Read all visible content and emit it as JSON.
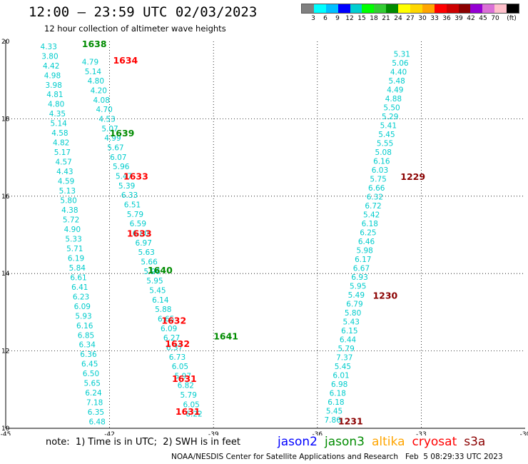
{
  "header": {
    "title": "12:00 — 23:59 UTC 02/03/2023",
    "subtitle": "12 hour collection of altimeter wave heights"
  },
  "colorbar": {
    "colors": [
      "#808080",
      "#00ffff",
      "#00bfff",
      "#0000ff",
      "#00ced1",
      "#00ff00",
      "#32cd32",
      "#008b00",
      "#ffff00",
      "#ffd700",
      "#ffa500",
      "#ff0000",
      "#cd0000",
      "#8b0000",
      "#9400d3",
      "#da70d6",
      "#ffc0cb",
      "#000000"
    ],
    "labels": [
      "3",
      "6",
      "9",
      "12",
      "15",
      "18",
      "21",
      "24",
      "27",
      "30",
      "33",
      "36",
      "39",
      "42",
      "45",
      "70",
      "(ft)"
    ]
  },
  "map": {
    "lon_range": [
      -45,
      -30
    ],
    "lat_range": [
      10,
      20
    ],
    "x_ticks": [
      "-45",
      "-42",
      "-39",
      "-36",
      "-33",
      "-30"
    ],
    "y_ticks": [
      "10",
      "12",
      "14",
      "16",
      "18",
      "20"
    ],
    "grid": true,
    "value_color": "#00cccc",
    "passes": [
      {
        "id": "west_a",
        "values": [
          "4.33",
          "3.80",
          "4.42",
          "4.98",
          "3.98",
          "4.81",
          "4.80",
          "4.35",
          "5.14",
          "4.58",
          "4.82",
          "5.17",
          "4.57",
          "4.43",
          "4.59",
          "5.13",
          "5.80",
          "4.38",
          "5.72",
          "4.90",
          "5.33",
          "5.71",
          "6.19",
          "5.84",
          "6.61",
          "6.41",
          "6.23",
          "6.09",
          "5.93",
          "6.16",
          "6.85",
          "6.34",
          "6.36",
          "6.45",
          "6.50",
          "5.65",
          "6.24",
          "7.18",
          "6.35",
          "6.48"
        ]
      },
      {
        "id": "west_b",
        "values": [
          "4.79",
          "5.14",
          "4.80",
          "4.20",
          "4.08",
          "4.70",
          "4.53",
          "5.07",
          "4.99",
          "5.67",
          "6.07",
          "5.96",
          "5.47",
          "5.39",
          "6.33",
          "6.51",
          "5.79",
          "6.59",
          "6.80",
          "6.97",
          "5.63",
          "5.66",
          "5.96",
          "5.95",
          "5.45",
          "6.14",
          "5.88",
          "6.65",
          "6.09",
          "6.27",
          "6.37",
          "6.73",
          "6.05",
          "5.97",
          "6.82",
          "5.79",
          "6.05",
          "6.22"
        ]
      },
      {
        "id": "east",
        "values": [
          "5.31",
          "5.06",
          "4.40",
          "5.48",
          "4.49",
          "4.88",
          "5.50",
          "5.29",
          "5.41",
          "5.45",
          "5.55",
          "5.08",
          "6.16",
          "6.03",
          "5.75",
          "6.66",
          "6.32",
          "6.72",
          "5.42",
          "6.18",
          "6.25",
          "6.46",
          "5.98",
          "6.17",
          "6.67",
          "6.93",
          "5.95",
          "5.49",
          "6.79",
          "5.80",
          "5.43",
          "6.15",
          "6.44",
          "5.79",
          "7.37",
          "5.45",
          "6.01",
          "6.98",
          "6.18",
          "6.18",
          "5.45",
          "7.86"
        ]
      }
    ],
    "time_labels": [
      {
        "text": "1638",
        "lon": -42.8,
        "lat": 19.85,
        "satellite": "jason3"
      },
      {
        "text": "1634",
        "lon": -41.9,
        "lat": 19.43,
        "satellite": "cryosat"
      },
      {
        "text": "1639",
        "lon": -42.0,
        "lat": 17.55,
        "satellite": "jason3"
      },
      {
        "text": "1633",
        "lon": -41.6,
        "lat": 16.43,
        "satellite": "cryosat"
      },
      {
        "text": "1633",
        "lon": -41.5,
        "lat": 14.95,
        "satellite": "cryosat"
      },
      {
        "text": "1640",
        "lon": -40.9,
        "lat": 14.0,
        "satellite": "jason3"
      },
      {
        "text": "1632",
        "lon": -40.5,
        "lat": 12.7,
        "satellite": "cryosat"
      },
      {
        "text": "1632",
        "lon": -40.4,
        "lat": 12.1,
        "satellite": "cryosat"
      },
      {
        "text": "1641",
        "lon": -39.0,
        "lat": 12.3,
        "satellite": "jason3"
      },
      {
        "text": "1631",
        "lon": -40.2,
        "lat": 11.2,
        "satellite": "cryosat"
      },
      {
        "text": "1631",
        "lon": -40.1,
        "lat": 10.35,
        "satellite": "cryosat"
      },
      {
        "text": "1229",
        "lon": -33.6,
        "lat": 16.42,
        "satellite": "s3a"
      },
      {
        "text": "1230",
        "lon": -34.4,
        "lat": 13.35,
        "satellite": "s3a"
      },
      {
        "text": "1231",
        "lon": -35.4,
        "lat": 10.1,
        "satellite": "s3a"
      }
    ]
  },
  "legend": {
    "note": "note:  1) Time is in UTC;  2) SWH is in feet",
    "satellites": [
      {
        "name": "jason2",
        "color": "#0000ff"
      },
      {
        "name": "jason3",
        "color": "#008b00"
      },
      {
        "name": "altika",
        "color": "#ffa500"
      },
      {
        "name": "cryosat",
        "color": "#ff0000"
      },
      {
        "name": "s3a",
        "color": "#8b0000"
      }
    ]
  },
  "footer": {
    "credit": "NOAA/NESDIS Center for Satellite Applications and Research",
    "timestamp": "Feb  5 08:29:33 UTC 2023"
  }
}
